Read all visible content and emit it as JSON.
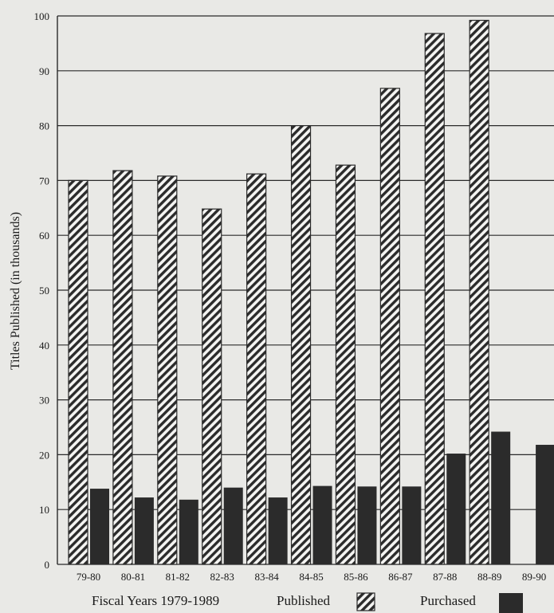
{
  "chart_data": {
    "type": "bar",
    "title": "",
    "xlabel": "Fiscal Years 1979-1989",
    "ylabel": "Titles Published (in thousands)",
    "ylim": [
      0,
      100
    ],
    "yticks": [
      0,
      10,
      20,
      30,
      40,
      50,
      60,
      70,
      80,
      90,
      100
    ],
    "grid": true,
    "legend_position": "bottom",
    "categories": [
      "79-80",
      "80-81",
      "81-82",
      "82-83",
      "83-84",
      "84-85",
      "85-86",
      "86-87",
      "87-88",
      "88-89",
      "89-90"
    ],
    "series": [
      {
        "name": "Published",
        "pattern": "diagonal-hatch",
        "color": "#2b2b2b",
        "values": [
          70,
          71.8,
          70.8,
          64.8,
          71.2,
          80,
          72.8,
          86.8,
          96.8,
          99.2,
          null
        ]
      },
      {
        "name": "Purchased",
        "pattern": "solid",
        "color": "#2b2b2b",
        "values": [
          13.8,
          12.2,
          11.8,
          14,
          12.2,
          14.3,
          14.2,
          14.2,
          20.2,
          24.2,
          21.8
        ]
      }
    ]
  }
}
